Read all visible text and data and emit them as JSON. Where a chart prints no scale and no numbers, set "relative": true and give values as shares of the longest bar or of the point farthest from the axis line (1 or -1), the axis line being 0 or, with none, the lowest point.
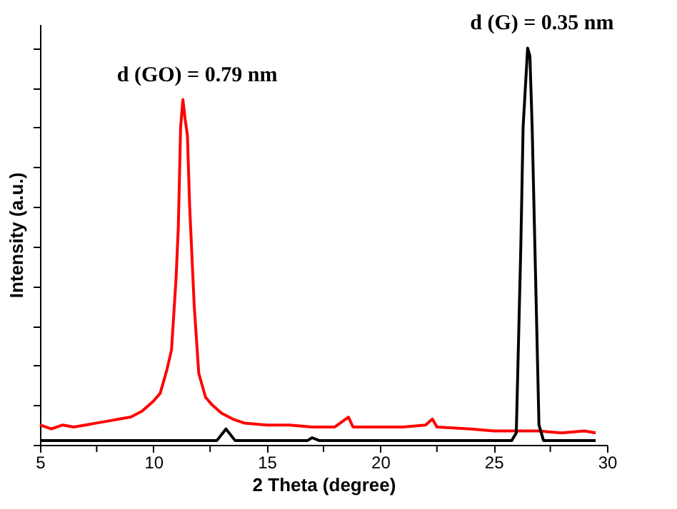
{
  "chart_data": {
    "type": "line",
    "relative": true,
    "xlabel": "2 Theta (degree)",
    "ylabel": "Intensity (a.u.)",
    "xlim": [
      5,
      30
    ],
    "xticks": [
      5,
      {
        "value": 7.5,
        "label": null
      },
      10,
      {
        "value": 12.5,
        "label": null
      },
      15,
      {
        "value": 17.5,
        "label": null
      },
      20,
      {
        "value": 22.5,
        "label": null
      },
      25,
      {
        "value": 27.5,
        "label": null
      },
      30
    ],
    "grid": false,
    "marker": "none",
    "line_style": "solid",
    "annotations": [
      {
        "text": "d (GO) = 0.79 nm",
        "x": 11.3,
        "y": 0.87
      },
      {
        "text": "d (G) = 0.35 nm",
        "x": 26.5,
        "y": 1
      }
    ],
    "series": [
      {
        "color": "#ff0000",
        "x": [
          5,
          5.5,
          6,
          6.5,
          7,
          7.5,
          8,
          8.5,
          9,
          9.5,
          10,
          10.3,
          10.6,
          10.8,
          11,
          11.1,
          11.2,
          11.3,
          11.4,
          11.5,
          11.6,
          11.8,
          12,
          12.3,
          12.6,
          13,
          13.5,
          14,
          15,
          16,
          17,
          18,
          18.6,
          18.8,
          20,
          21,
          22,
          22.3,
          22.5,
          24,
          25,
          26,
          27,
          28,
          29,
          29.5
        ],
        "values": [
          0.05,
          0.04,
          0.05,
          0.045,
          0.05,
          0.055,
          0.06,
          0.065,
          0.07,
          0.085,
          0.11,
          0.13,
          0.19,
          0.24,
          0.42,
          0.55,
          0.8,
          0.87,
          0.82,
          0.78,
          0.6,
          0.35,
          0.18,
          0.12,
          0.1,
          0.08,
          0.065,
          0.055,
          0.05,
          0.05,
          0.045,
          0.045,
          0.07,
          0.045,
          0.045,
          0.045,
          0.05,
          0.065,
          0.045,
          0.04,
          0.035,
          0.035,
          0.035,
          0.03,
          0.035,
          0.03
        ]
      },
      {
        "color": "#000000",
        "x": [
          5,
          12.8,
          13.2,
          13.6,
          16.8,
          17,
          17.3,
          25.8,
          26,
          26.2,
          26.3,
          26.5,
          26.6,
          26.7,
          26.9,
          27,
          27.2,
          29.5
        ],
        "values": [
          0.011,
          0.011,
          0.04,
          0.011,
          0.011,
          0.018,
          0.011,
          0.011,
          0.03,
          0.5,
          0.8,
          1,
          0.98,
          0.8,
          0.3,
          0.05,
          0.011,
          0.011
        ]
      }
    ]
  }
}
